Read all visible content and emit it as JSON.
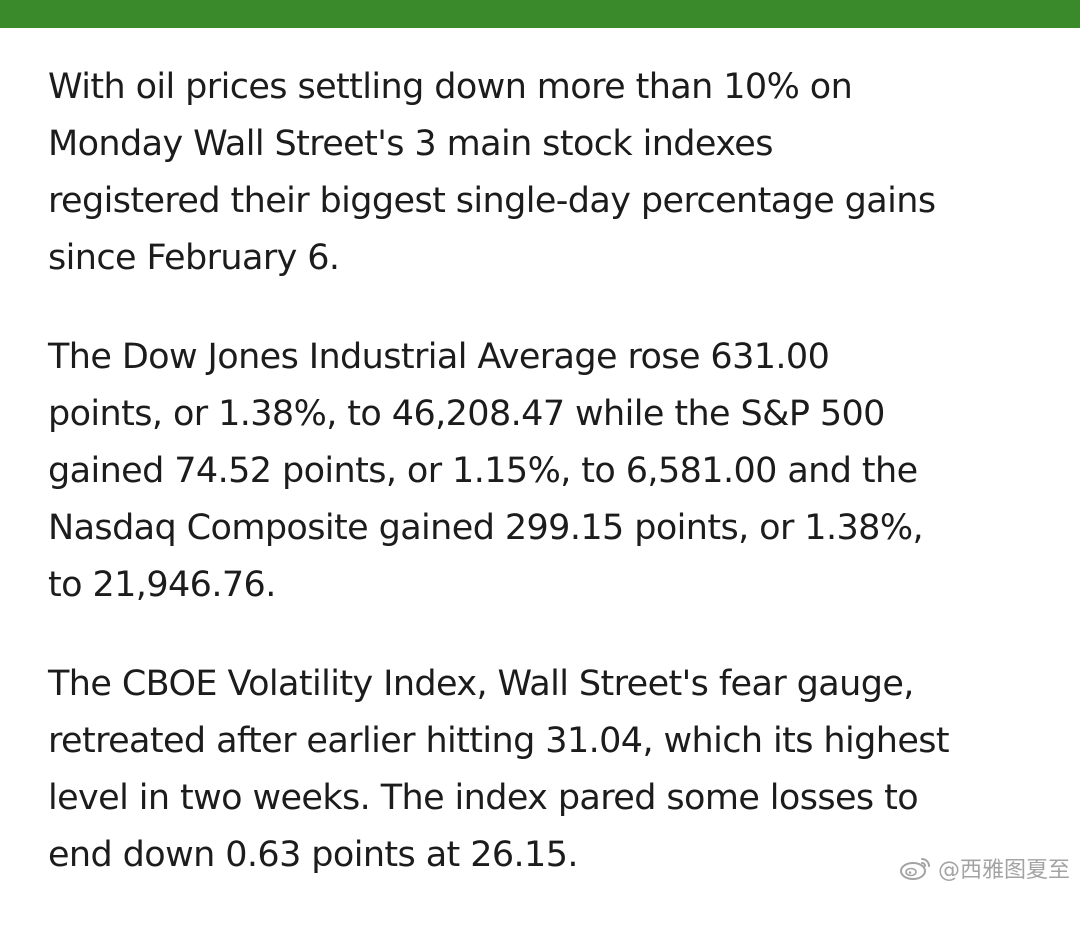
{
  "accent_color": "#3a8a2c",
  "paragraphs": [
    "With oil prices settling down more than 10% on\nMonday Wall Street's 3 main stock indexes\nregistered their biggest single-day percentage gains\nsince February 6.",
    "The Dow Jones Industrial Average rose 631.00\npoints, or 1.38%, to 46,208.47 while the S&P 500\ngained 74.52 points, or 1.15%, to 6,581.00 and the\nNasdaq Composite gained 299.15 points, or 1.38%,\nto 21,946.76.",
    "The CBOE Volatility Index, Wall Street's fear gauge,\nretreated after earlier hitting 31.04, which its highest\nlevel in two weeks. The index pared some losses to\nend down 0.63 points at 26.15."
  ],
  "watermark": {
    "text": "@西雅图夏至",
    "icon": "weibo-icon"
  }
}
